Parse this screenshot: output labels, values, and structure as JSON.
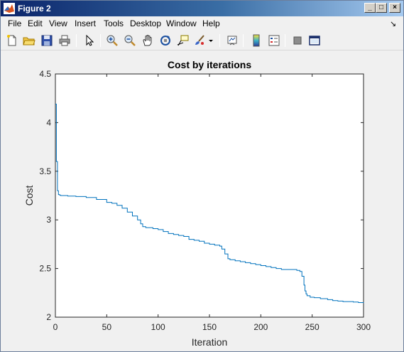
{
  "window": {
    "title": "Figure 2"
  },
  "menu": [
    "File",
    "Edit",
    "View",
    "Insert",
    "Tools",
    "Desktop",
    "Window",
    "Help"
  ],
  "toolbar": {
    "tools": [
      "new-figure-icon",
      "open-file-icon",
      "save-icon",
      "print-icon",
      "pointer-icon",
      "zoom-in-icon",
      "zoom-out-icon",
      "pan-hand-icon",
      "rotate-3d-icon",
      "data-cursor-icon",
      "brush-icon",
      "link-plot-icon",
      "colorbar-icon",
      "legend-icon",
      "hide-plot-tools-icon",
      "show-plot-tools-icon"
    ]
  },
  "chart_data": {
    "type": "line",
    "title": "Cost by iterations",
    "xlabel": "Iteration",
    "ylabel": "Cost",
    "xlim": [
      0,
      300
    ],
    "ylim": [
      2,
      4.5
    ],
    "xticks": [
      "0",
      "50",
      "100",
      "150",
      "200",
      "250",
      "300"
    ],
    "yticks": [
      "2",
      "2.5",
      "3",
      "3.5",
      "4",
      "4.5"
    ],
    "grid": false,
    "series": [
      {
        "color": "#0072bd",
        "x": [
          0,
          1,
          2,
          3,
          4,
          5,
          8,
          12,
          20,
          30,
          40,
          50,
          55,
          60,
          65,
          70,
          75,
          80,
          83,
          85,
          88,
          95,
          100,
          105,
          110,
          115,
          120,
          125,
          130,
          135,
          140,
          145,
          150,
          155,
          160,
          162,
          165,
          168,
          170,
          175,
          180,
          185,
          190,
          195,
          200,
          205,
          210,
          215,
          220,
          225,
          230,
          235,
          238,
          240,
          242,
          243,
          244,
          245,
          248,
          252,
          258,
          265,
          270,
          275,
          280,
          290,
          295,
          300
        ],
        "y": [
          4.19,
          3.6,
          3.3,
          3.26,
          3.255,
          3.25,
          3.25,
          3.245,
          3.24,
          3.23,
          3.21,
          3.18,
          3.17,
          3.15,
          3.12,
          3.08,
          3.04,
          3.0,
          2.96,
          2.93,
          2.92,
          2.91,
          2.9,
          2.88,
          2.86,
          2.85,
          2.84,
          2.83,
          2.8,
          2.79,
          2.78,
          2.76,
          2.75,
          2.74,
          2.73,
          2.7,
          2.65,
          2.6,
          2.59,
          2.58,
          2.57,
          2.56,
          2.55,
          2.54,
          2.53,
          2.52,
          2.51,
          2.5,
          2.49,
          2.49,
          2.49,
          2.48,
          2.47,
          2.42,
          2.33,
          2.27,
          2.24,
          2.22,
          2.205,
          2.2,
          2.19,
          2.18,
          2.17,
          2.165,
          2.16,
          2.155,
          2.15,
          2.145
        ]
      }
    ]
  }
}
